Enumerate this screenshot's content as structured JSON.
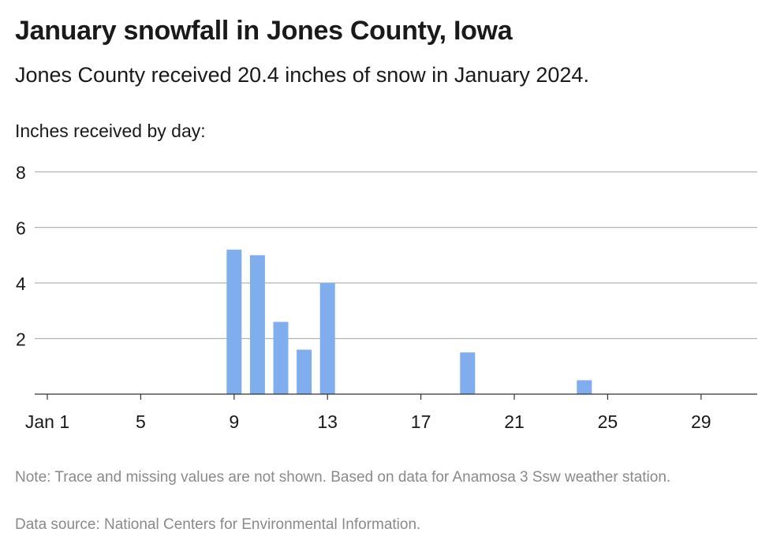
{
  "title": "January snowfall in Jones County, Iowa",
  "subtitle": "Jones County received 20.4 inches of snow in January 2024.",
  "ylabel": "Inches received by day:",
  "note": "Note: Trace and missing values are not shown. Based on data for Anamosa 3 Ssw weather station.",
  "source": "Data source: National Centers for Environmental Information.",
  "colors": {
    "bar": "#7faded",
    "grid": "#b3b3b3",
    "axis": "#333333"
  },
  "chart_data": {
    "type": "bar",
    "title": "January snowfall in Jones County, Iowa",
    "xlabel": "",
    "ylabel": "Inches received by day:",
    "x_domain": [
      1,
      31
    ],
    "ylim": [
      0,
      8
    ],
    "y_ticks": [
      2,
      4,
      6,
      8
    ],
    "x_ticks": [
      {
        "day": 1,
        "label": "Jan 1"
      },
      {
        "day": 5,
        "label": "5"
      },
      {
        "day": 9,
        "label": "9"
      },
      {
        "day": 13,
        "label": "13"
      },
      {
        "day": 17,
        "label": "17"
      },
      {
        "day": 21,
        "label": "21"
      },
      {
        "day": 25,
        "label": "25"
      },
      {
        "day": 29,
        "label": "29"
      }
    ],
    "grid": true,
    "legend": "none",
    "days": [
      9,
      10,
      11,
      12,
      13,
      19,
      24
    ],
    "values": [
      5.2,
      5.0,
      2.6,
      1.6,
      4.0,
      1.5,
      0.5
    ]
  }
}
